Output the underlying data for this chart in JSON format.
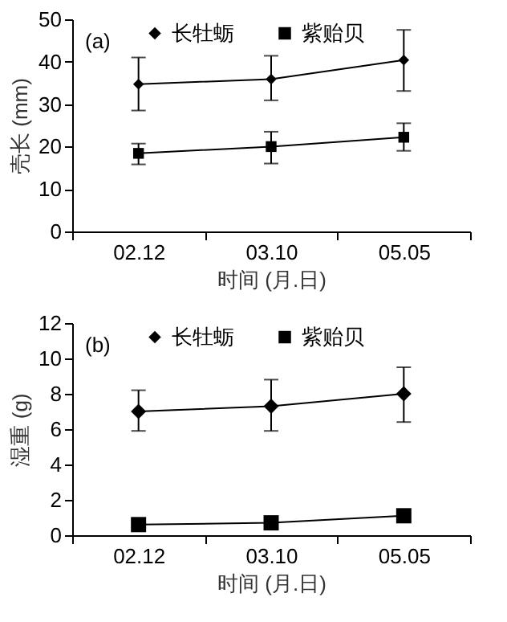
{
  "chart_data": [
    {
      "type": "line",
      "ylabel": "壳长 (mm)",
      "xlabel": "时间 (月.日)",
      "annotations": [
        "(a)"
      ],
      "categories": [
        "02.12",
        "03.10",
        "05.05"
      ],
      "ylim": [
        0,
        50
      ],
      "yticks": [
        0,
        10,
        20,
        30,
        40,
        50
      ],
      "grid": false,
      "legend": "top",
      "line_style": "solid",
      "series": [
        {
          "name": "长牡蛎",
          "color": "#000000",
          "marker": "diamond",
          "values": [
            34.7,
            35.9,
            40.4
          ],
          "errors": [
            [
              28.5,
              41.0
            ],
            [
              30.9,
              41.4
            ],
            [
              33.1,
              47.5
            ]
          ]
        },
        {
          "name": "紫贻贝",
          "color": "#000000",
          "marker": "square",
          "values": [
            18.4,
            20.0,
            22.2
          ],
          "errors": [
            [
              15.8,
              20.7
            ],
            [
              16.0,
              23.5
            ],
            [
              19.0,
              25.5
            ]
          ]
        }
      ]
    },
    {
      "type": "line",
      "ylabel": "湿重 (g)",
      "xlabel": "时间 (月.日)",
      "annotations": [
        "(b)"
      ],
      "categories": [
        "02.12",
        "03.10",
        "05.05"
      ],
      "ylim": [
        0,
        12
      ],
      "yticks": [
        0,
        2,
        4,
        6,
        8,
        10,
        12
      ],
      "grid": false,
      "legend": "top",
      "line_style": "solid",
      "series": [
        {
          "name": "长牡蛎",
          "color": "#000000",
          "marker": "diamond",
          "values": [
            7.0,
            7.3,
            8.0
          ],
          "errors": [
            [
              5.9,
              8.2
            ],
            [
              5.9,
              8.8
            ],
            [
              6.4,
              9.5
            ]
          ]
        },
        {
          "name": "紫贻贝",
          "color": "#000000",
          "marker": "square",
          "values": [
            0.6,
            0.7,
            1.1
          ]
        }
      ]
    }
  ]
}
